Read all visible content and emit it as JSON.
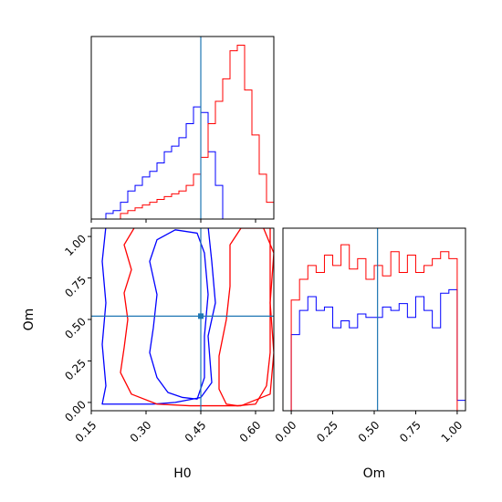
{
  "chart_data": {
    "type": "corner",
    "parameters": [
      "H0",
      "Om"
    ],
    "truths": {
      "H0": 0.45,
      "Om": 0.52
    },
    "colors": {
      "run_a": "#ff0000",
      "run_b": "#0000ff",
      "truth": "#1f77b4"
    },
    "axes": {
      "H0": {
        "xlim": [
          0.15,
          0.65
        ],
        "ticks": [
          0.15,
          0.3,
          0.45,
          0.6
        ],
        "tick_labels": [
          "0.15",
          "0.30",
          "0.45",
          "0.60"
        ],
        "label": "H0"
      },
      "Om": {
        "lim": [
          -0.05,
          1.05
        ],
        "ticks": [
          0.0,
          0.25,
          0.5,
          0.75,
          1.0
        ],
        "tick_labels": [
          "0.00",
          "0.25",
          "0.50",
          "0.75",
          "1.00"
        ],
        "label": "Om"
      }
    },
    "hist_H0": {
      "bin_edges": [
        0.19,
        0.21,
        0.23,
        0.25,
        0.27,
        0.29,
        0.31,
        0.33,
        0.35,
        0.37,
        0.39,
        0.41,
        0.43,
        0.45,
        0.47,
        0.49,
        0.51,
        0.53,
        0.55,
        0.57,
        0.59,
        0.61,
        0.63,
        0.65
      ],
      "run_a_counts": [
        0,
        0,
        2,
        3,
        4,
        5,
        6,
        7,
        8,
        9,
        10,
        12,
        16,
        22,
        34,
        42,
        50,
        60,
        62,
        46,
        30,
        16,
        6
      ],
      "run_b_counts": [
        2,
        3,
        6,
        10,
        12,
        15,
        17,
        20,
        24,
        26,
        29,
        34,
        40,
        38,
        24,
        12,
        0,
        0,
        0,
        0,
        0,
        0,
        0
      ]
    },
    "hist_Om": {
      "bin_edges": [
        -0.05,
        0.0,
        0.05,
        0.1,
        0.15,
        0.2,
        0.25,
        0.3,
        0.35,
        0.4,
        0.45,
        0.5,
        0.55,
        0.6,
        0.65,
        0.7,
        0.75,
        0.8,
        0.85,
        0.9,
        0.95,
        1.0,
        1.05
      ],
      "run_a_counts": [
        0,
        32,
        38,
        42,
        40,
        45,
        42,
        48,
        41,
        44,
        38,
        42,
        39,
        46,
        40,
        45,
        40,
        42,
        44,
        46,
        44,
        0
      ],
      "run_b_counts": [
        0,
        22,
        29,
        33,
        29,
        30,
        24,
        26,
        24,
        28,
        27,
        27,
        30,
        29,
        31,
        27,
        33,
        29,
        24,
        34,
        35,
        3
      ]
    },
    "contours": {
      "run_a": [
        [
          [
            0.55,
            -0.02
          ],
          [
            0.6,
            -0.01
          ],
          [
            0.63,
            0.1
          ],
          [
            0.64,
            0.3
          ],
          [
            0.64,
            0.55
          ],
          [
            0.64,
            0.8
          ],
          [
            0.64,
            1.05
          ],
          [
            0.56,
            1.05
          ],
          [
            0.53,
            0.95
          ],
          [
            0.53,
            0.7
          ],
          [
            0.52,
            0.5
          ],
          [
            0.5,
            0.28
          ],
          [
            0.5,
            0.08
          ],
          [
            0.52,
            -0.01
          ]
        ],
        [
          [
            0.42,
            -0.02
          ],
          [
            0.56,
            -0.02
          ],
          [
            0.64,
            0.05
          ],
          [
            0.65,
            0.3
          ],
          [
            0.64,
            0.6
          ],
          [
            0.65,
            0.9
          ],
          [
            0.62,
            1.06
          ],
          [
            0.48,
            1.06
          ],
          [
            0.4,
            1.08
          ],
          [
            0.34,
            1.07
          ],
          [
            0.27,
            1.06
          ],
          [
            0.24,
            0.95
          ],
          [
            0.26,
            0.8
          ],
          [
            0.24,
            0.66
          ],
          [
            0.25,
            0.5
          ],
          [
            0.24,
            0.33
          ],
          [
            0.23,
            0.18
          ],
          [
            0.26,
            0.05
          ],
          [
            0.33,
            -0.01
          ]
        ]
      ],
      "run_b": [
        [
          [
            0.4,
            0.03
          ],
          [
            0.44,
            0.02
          ],
          [
            0.46,
            0.15
          ],
          [
            0.46,
            0.4
          ],
          [
            0.47,
            0.65
          ],
          [
            0.46,
            0.9
          ],
          [
            0.44,
            1.02
          ],
          [
            0.38,
            1.04
          ],
          [
            0.33,
            0.98
          ],
          [
            0.31,
            0.85
          ],
          [
            0.33,
            0.65
          ],
          [
            0.32,
            0.45
          ],
          [
            0.31,
            0.3
          ],
          [
            0.33,
            0.15
          ],
          [
            0.36,
            0.06
          ]
        ],
        [
          [
            0.18,
            -0.01
          ],
          [
            0.32,
            -0.01
          ],
          [
            0.38,
            0.0
          ],
          [
            0.45,
            0.03
          ],
          [
            0.48,
            0.12
          ],
          [
            0.47,
            0.4
          ],
          [
            0.49,
            0.6
          ],
          [
            0.48,
            0.85
          ],
          [
            0.47,
            1.06
          ],
          [
            0.3,
            1.06
          ],
          [
            0.19,
            1.06
          ],
          [
            0.18,
            0.85
          ],
          [
            0.19,
            0.6
          ],
          [
            0.18,
            0.35
          ],
          [
            0.19,
            0.1
          ]
        ]
      ]
    }
  }
}
